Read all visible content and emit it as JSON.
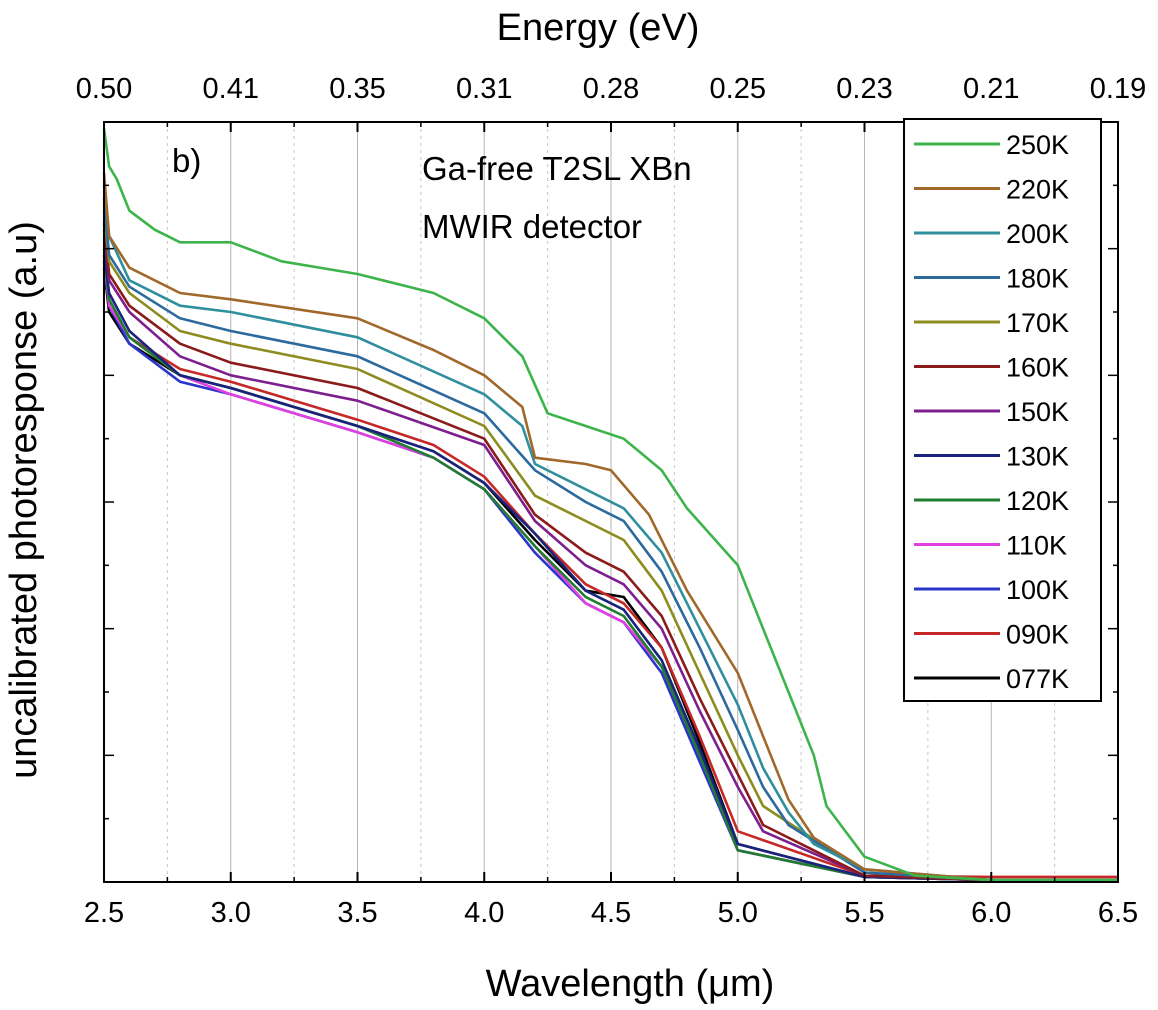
{
  "chart_data": {
    "type": "line",
    "title": "",
    "xlabel": "Wavelength (μm)",
    "ylabel": "uncalibrated photoresponse (a.u)",
    "top_axis_label": "Energy (eV)",
    "xlim": [
      2.5,
      6.5
    ],
    "ylim": [
      0,
      1.2
    ],
    "x_ticks": [
      "2.5",
      "3.0",
      "3.5",
      "4.0",
      "4.5",
      "5.0",
      "5.5",
      "6.0",
      "6.5"
    ],
    "top_ticks": [
      "0.50",
      "0.41",
      "0.35",
      "0.31",
      "0.28",
      "0.25",
      "0.23",
      "0.21",
      "0.19"
    ],
    "grid": "vertical",
    "legend_position": "top-right",
    "annotations": {
      "panel": "b)",
      "line1": "Ga-free T2SL XBn",
      "line2": "MWIR detector"
    },
    "series": [
      {
        "name": "250K",
        "color": "#3cb44b",
        "x": [
          2.5,
          2.52,
          2.55,
          2.6,
          2.7,
          2.8,
          3.0,
          3.2,
          3.5,
          3.8,
          4.0,
          4.15,
          4.25,
          4.4,
          4.55,
          4.7,
          4.8,
          5.0,
          5.1,
          5.2,
          5.3,
          5.35,
          5.5,
          5.7,
          6.0,
          6.5
        ],
        "y": [
          1.19,
          1.13,
          1.11,
          1.06,
          1.03,
          1.01,
          1.01,
          0.98,
          0.96,
          0.93,
          0.89,
          0.83,
          0.74,
          0.72,
          0.7,
          0.65,
          0.59,
          0.5,
          0.4,
          0.3,
          0.2,
          0.12,
          0.04,
          0.01,
          0.003,
          0.003
        ]
      },
      {
        "name": "220K",
        "color": "#a0692a",
        "x": [
          2.5,
          2.52,
          2.6,
          2.8,
          3.0,
          3.5,
          3.8,
          4.0,
          4.15,
          4.2,
          4.4,
          4.5,
          4.65,
          4.8,
          5.0,
          5.1,
          5.2,
          5.3,
          5.5,
          6.0,
          6.5
        ],
        "y": [
          1.12,
          1.02,
          0.97,
          0.93,
          0.92,
          0.89,
          0.84,
          0.8,
          0.75,
          0.67,
          0.66,
          0.65,
          0.58,
          0.46,
          0.33,
          0.23,
          0.13,
          0.07,
          0.02,
          0.003,
          0.003
        ]
      },
      {
        "name": "200K",
        "color": "#2f8f9d",
        "x": [
          2.5,
          2.52,
          2.6,
          2.8,
          3.0,
          3.5,
          4.0,
          4.15,
          4.2,
          4.4,
          4.55,
          4.7,
          4.85,
          5.0,
          5.1,
          5.2,
          5.3,
          5.5,
          6.0,
          6.5
        ],
        "y": [
          1.1,
          1.02,
          0.95,
          0.91,
          0.9,
          0.86,
          0.77,
          0.72,
          0.66,
          0.62,
          0.59,
          0.52,
          0.4,
          0.28,
          0.18,
          0.11,
          0.06,
          0.02,
          0.003,
          0.003
        ]
      },
      {
        "name": "180K",
        "color": "#2c6a9e",
        "x": [
          2.5,
          2.52,
          2.6,
          2.8,
          3.0,
          3.5,
          4.0,
          4.2,
          4.4,
          4.55,
          4.7,
          4.85,
          5.0,
          5.1,
          5.2,
          5.5,
          6.0,
          6.5
        ],
        "y": [
          1.08,
          0.99,
          0.94,
          0.89,
          0.87,
          0.83,
          0.74,
          0.65,
          0.6,
          0.57,
          0.49,
          0.37,
          0.24,
          0.15,
          0.09,
          0.015,
          0.003,
          0.003
        ]
      },
      {
        "name": "170K",
        "color": "#8c8c1f",
        "x": [
          2.5,
          2.52,
          2.6,
          2.8,
          3.0,
          3.5,
          4.0,
          4.2,
          4.4,
          4.55,
          4.7,
          4.85,
          5.0,
          5.1,
          5.5,
          6.0,
          6.5
        ],
        "y": [
          1.06,
          0.98,
          0.93,
          0.87,
          0.85,
          0.81,
          0.72,
          0.61,
          0.57,
          0.54,
          0.46,
          0.33,
          0.2,
          0.12,
          0.015,
          0.003,
          0.003
        ]
      },
      {
        "name": "160K",
        "color": "#8b1a1a",
        "x": [
          2.5,
          2.52,
          2.6,
          2.8,
          3.0,
          3.5,
          4.0,
          4.2,
          4.4,
          4.55,
          4.7,
          4.85,
          5.0,
          5.1,
          5.5,
          6.0,
          6.5
        ],
        "y": [
          1.04,
          0.96,
          0.91,
          0.85,
          0.82,
          0.78,
          0.7,
          0.58,
          0.52,
          0.49,
          0.42,
          0.29,
          0.17,
          0.09,
          0.01,
          0.003,
          0.003
        ]
      },
      {
        "name": "150K",
        "color": "#7d1f8f",
        "x": [
          2.5,
          2.52,
          2.6,
          2.8,
          3.0,
          3.5,
          4.0,
          4.2,
          4.4,
          4.55,
          4.7,
          4.85,
          5.0,
          5.1,
          5.5,
          6.0,
          6.5
        ],
        "y": [
          1.03,
          0.95,
          0.9,
          0.83,
          0.8,
          0.76,
          0.69,
          0.57,
          0.5,
          0.47,
          0.4,
          0.27,
          0.15,
          0.08,
          0.01,
          0.003,
          0.003
        ]
      },
      {
        "name": "130K",
        "color": "#1a237e",
        "x": [
          2.5,
          2.52,
          2.6,
          2.8,
          3.0,
          3.5,
          3.8,
          4.0,
          4.2,
          4.4,
          4.55,
          4.7,
          4.85,
          5.0,
          5.5,
          6.0,
          6.5
        ],
        "y": [
          1.0,
          0.93,
          0.87,
          0.8,
          0.78,
          0.72,
          0.68,
          0.63,
          0.55,
          0.46,
          0.43,
          0.35,
          0.21,
          0.06,
          0.008,
          0.003,
          0.003
        ]
      },
      {
        "name": "120K",
        "color": "#1e7d2e",
        "x": [
          2.5,
          2.52,
          2.6,
          2.8,
          3.0,
          3.5,
          3.8,
          4.0,
          4.2,
          4.4,
          4.55,
          4.7,
          4.85,
          5.0,
          5.5,
          6.0,
          6.5
        ],
        "y": [
          0.99,
          0.92,
          0.86,
          0.8,
          0.78,
          0.72,
          0.67,
          0.62,
          0.53,
          0.45,
          0.42,
          0.34,
          0.2,
          0.05,
          0.008,
          0.003,
          0.003
        ]
      },
      {
        "name": "110K",
        "color": "#e040e0",
        "x": [
          2.5,
          2.52,
          2.6,
          2.8,
          3.0,
          3.5,
          3.8,
          4.0,
          4.2,
          4.4,
          4.55,
          4.7,
          4.85,
          5.0,
          5.5,
          6.0,
          6.5
        ],
        "y": [
          0.99,
          0.91,
          0.86,
          0.8,
          0.77,
          0.71,
          0.67,
          0.62,
          0.53,
          0.44,
          0.41,
          0.34,
          0.2,
          0.05,
          0.008,
          0.003,
          0.003
        ]
      },
      {
        "name": "100K",
        "color": "#2a35c9",
        "x": [
          2.5,
          2.52,
          2.6,
          2.8,
          3.0,
          3.5,
          3.8,
          4.0,
          4.2,
          4.4,
          4.55,
          4.7,
          4.85,
          5.0,
          5.5,
          6.0,
          6.5
        ],
        "y": [
          0.98,
          0.91,
          0.85,
          0.79,
          0.77,
          0.71,
          0.67,
          0.62,
          0.52,
          0.44,
          0.41,
          0.33,
          0.19,
          0.05,
          0.008,
          0.003,
          0.003
        ]
      },
      {
        "name": "090K",
        "color": "#c62828",
        "x": [
          2.5,
          2.52,
          2.6,
          2.8,
          3.0,
          3.5,
          3.8,
          4.0,
          4.2,
          4.4,
          4.55,
          4.7,
          4.85,
          5.0,
          5.5,
          6.0,
          6.5
        ],
        "y": [
          0.98,
          0.91,
          0.86,
          0.81,
          0.79,
          0.73,
          0.69,
          0.64,
          0.55,
          0.47,
          0.44,
          0.37,
          0.23,
          0.08,
          0.01,
          0.008,
          0.008
        ]
      },
      {
        "name": "077K",
        "color": "#000000",
        "x": [
          2.5,
          2.52,
          2.6,
          2.8,
          3.0,
          3.5,
          3.8,
          4.0,
          4.2,
          4.4,
          4.55,
          4.7,
          4.85,
          5.0,
          5.5,
          6.0,
          6.5
        ],
        "y": [
          0.97,
          0.9,
          0.85,
          0.8,
          0.78,
          0.72,
          0.68,
          0.63,
          0.54,
          0.46,
          0.45,
          0.37,
          0.22,
          0.06,
          0.008,
          0.003,
          0.003
        ]
      }
    ]
  }
}
